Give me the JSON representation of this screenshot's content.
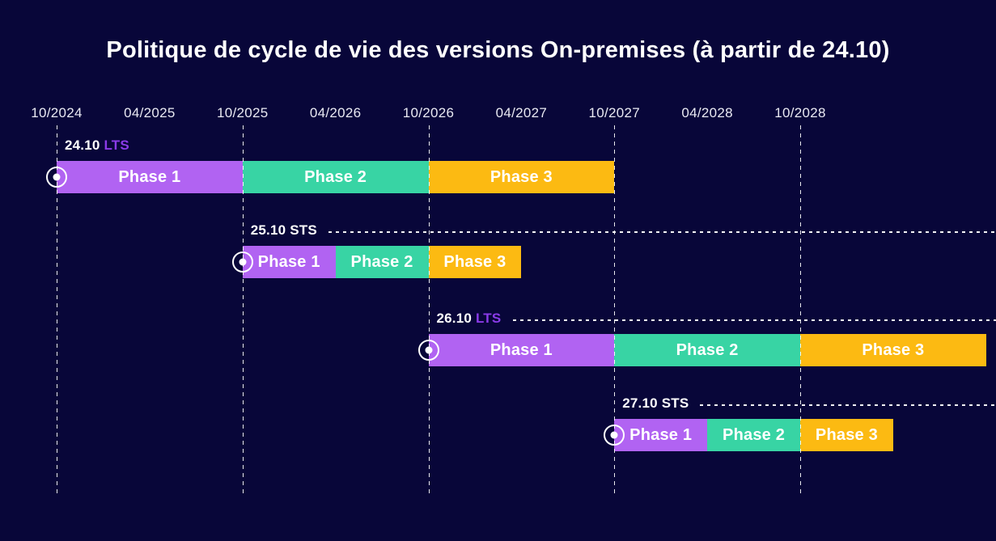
{
  "title": "Politique de cycle de vie des versions On-premises (à partir de 24.10)",
  "colors": {
    "background": "#080639",
    "phase1": "#b163f2",
    "phase2": "#38d4a4",
    "phase3": "#fcba12",
    "lts_tag": "#8a3be8",
    "sts_tag": "#ffffff",
    "text": "#ffffff",
    "axis_text": "#e9e9f2"
  },
  "chart_data": {
    "type": "bar",
    "subtype": "gantt-timeline",
    "title": "Politique de cycle de vie des versions On-premises (à partir de 24.10)",
    "xlabel": "",
    "ylabel": "",
    "grid": "dashed-vertical-october-lines",
    "legend_position": "none",
    "x_ticks": [
      "10/2024",
      "04/2025",
      "10/2025",
      "04/2026",
      "10/2026",
      "04/2027",
      "10/2027",
      "04/2028",
      "10/2028"
    ],
    "gridline_ticks": [
      "10/2024",
      "10/2025",
      "10/2026",
      "10/2027",
      "10/2028"
    ],
    "series": [
      {
        "version": "24.10",
        "channel": "LTS",
        "leader_line": false,
        "phases": [
          {
            "label": "Phase 1",
            "start": "10/2024",
            "end": "10/2025"
          },
          {
            "label": "Phase 2",
            "start": "10/2025",
            "end": "10/2026"
          },
          {
            "label": "Phase 3",
            "start": "10/2026",
            "end": "10/2027"
          }
        ]
      },
      {
        "version": "25.10",
        "channel": "STS",
        "leader_line": true,
        "phases": [
          {
            "label": "Phase 1",
            "start": "10/2025",
            "end": "04/2026"
          },
          {
            "label": "Phase 2",
            "start": "04/2026",
            "end": "10/2026"
          },
          {
            "label": "Phase 3",
            "start": "10/2026",
            "end": "04/2027"
          }
        ]
      },
      {
        "version": "26.10",
        "channel": "LTS",
        "leader_line": true,
        "phases": [
          {
            "label": "Phase 1",
            "start": "10/2026",
            "end": "10/2027"
          },
          {
            "label": "Phase 2",
            "start": "10/2027",
            "end": "10/2028"
          },
          {
            "label": "Phase 3",
            "start": "10/2028",
            "end": "10/2029"
          }
        ]
      },
      {
        "version": "27.10",
        "channel": "STS",
        "leader_line": true,
        "phases": [
          {
            "label": "Phase 1",
            "start": "10/2027",
            "end": "04/2028"
          },
          {
            "label": "Phase 2",
            "start": "04/2028",
            "end": "10/2028"
          },
          {
            "label": "Phase 3",
            "start": "10/2028",
            "end": "04/2029"
          }
        ]
      }
    ]
  }
}
